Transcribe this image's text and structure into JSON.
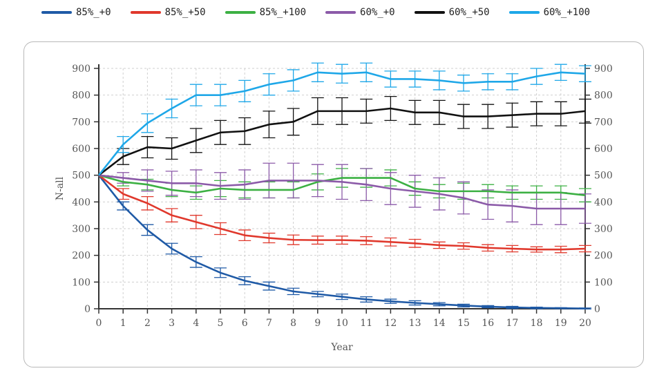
{
  "chart_data": {
    "type": "line",
    "xlabel": "Year",
    "ylabel": "N-all",
    "xlim": [
      0,
      20
    ],
    "ylim": [
      0,
      900
    ],
    "x_ticks": [
      0,
      1,
      2,
      3,
      4,
      5,
      6,
      7,
      8,
      9,
      10,
      11,
      12,
      13,
      14,
      15,
      16,
      17,
      18,
      19,
      20
    ],
    "y_ticks": [
      0,
      100,
      200,
      300,
      400,
      500,
      600,
      700,
      800,
      900
    ],
    "grid": true,
    "legend_position": "top",
    "x": [
      0,
      1,
      2,
      3,
      4,
      5,
      6,
      7,
      8,
      9,
      10,
      11,
      12,
      13,
      14,
      15,
      16,
      17,
      18,
      19,
      20
    ],
    "series": [
      {
        "name": "85%_+0",
        "color": "#1f5aa6",
        "values": [
          500,
          385,
          295,
          225,
          175,
          135,
          105,
          85,
          65,
          55,
          45,
          35,
          28,
          22,
          17,
          12,
          8,
          5,
          3,
          2,
          1
        ],
        "errors": [
          0,
          15,
          20,
          20,
          20,
          18,
          15,
          15,
          12,
          10,
          10,
          10,
          8,
          8,
          6,
          5,
          4,
          4,
          3,
          2,
          2
        ]
      },
      {
        "name": "85%_+50",
        "color": "#e0382c",
        "values": [
          500,
          430,
          395,
          350,
          325,
          300,
          275,
          265,
          258,
          257,
          257,
          255,
          250,
          245,
          238,
          235,
          228,
          225,
          222,
          222,
          225
        ],
        "errors": [
          0,
          20,
          25,
          25,
          25,
          22,
          20,
          18,
          18,
          15,
          15,
          15,
          15,
          15,
          12,
          12,
          12,
          12,
          10,
          12,
          12
        ]
      },
      {
        "name": "85%_+100",
        "color": "#3cb043",
        "values": [
          500,
          475,
          465,
          445,
          435,
          450,
          445,
          445,
          445,
          475,
          490,
          490,
          490,
          450,
          440,
          440,
          440,
          435,
          435,
          435,
          425
        ],
        "errors": [
          0,
          15,
          20,
          25,
          25,
          30,
          30,
          30,
          30,
          30,
          35,
          35,
          30,
          25,
          25,
          30,
          25,
          25,
          25,
          25,
          25
        ]
      },
      {
        "name": "60%_+0",
        "color": "#8b5aa8",
        "values": [
          500,
          490,
          480,
          470,
          470,
          460,
          465,
          480,
          480,
          480,
          475,
          465,
          450,
          440,
          430,
          415,
          390,
          385,
          375,
          375,
          375
        ],
        "errors": [
          0,
          20,
          40,
          45,
          50,
          50,
          55,
          65,
          65,
          60,
          65,
          60,
          60,
          60,
          60,
          60,
          55,
          60,
          60,
          60,
          55
        ]
      },
      {
        "name": "60%_+50",
        "color": "#111111",
        "values": [
          500,
          570,
          605,
          600,
          630,
          660,
          665,
          690,
          700,
          740,
          740,
          740,
          750,
          735,
          735,
          720,
          720,
          725,
          730,
          730,
          740
        ],
        "errors": [
          0,
          30,
          40,
          40,
          45,
          45,
          50,
          50,
          50,
          50,
          50,
          45,
          45,
          45,
          45,
          45,
          45,
          45,
          45,
          45,
          45
        ]
      },
      {
        "name": "60%_+100",
        "color": "#1ea7e8",
        "values": [
          500,
          615,
          695,
          750,
          800,
          800,
          815,
          840,
          855,
          885,
          880,
          885,
          860,
          860,
          855,
          845,
          850,
          850,
          870,
          885,
          880
        ],
        "errors": [
          0,
          30,
          35,
          35,
          40,
          40,
          40,
          40,
          40,
          35,
          35,
          35,
          30,
          30,
          35,
          30,
          30,
          30,
          30,
          30,
          30
        ]
      }
    ]
  }
}
